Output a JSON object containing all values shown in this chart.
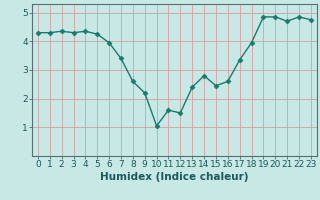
{
  "x": [
    0,
    1,
    2,
    3,
    4,
    5,
    6,
    7,
    8,
    9,
    10,
    11,
    12,
    13,
    14,
    15,
    16,
    17,
    18,
    19,
    20,
    21,
    22,
    23
  ],
  "y": [
    4.3,
    4.3,
    4.35,
    4.3,
    4.35,
    4.25,
    3.95,
    3.4,
    2.6,
    2.2,
    1.05,
    1.6,
    1.5,
    2.4,
    2.8,
    2.45,
    2.6,
    3.35,
    3.95,
    4.85,
    4.85,
    4.7,
    4.85,
    4.75
  ],
  "line_color": "#1a7a6e",
  "marker": "D",
  "marker_size": 2.5,
  "bg_color": "#c8e8e5",
  "grid_color": "#d4a0a0",
  "xlabel": "Humidex (Indice chaleur)",
  "xlim": [
    -0.5,
    23.5
  ],
  "ylim": [
    0,
    5.3
  ],
  "yticks": [
    1,
    2,
    3,
    4,
    5
  ],
  "xticks": [
    0,
    1,
    2,
    3,
    4,
    5,
    6,
    7,
    8,
    9,
    10,
    11,
    12,
    13,
    14,
    15,
    16,
    17,
    18,
    19,
    20,
    21,
    22,
    23
  ],
  "tick_fontsize": 6.5,
  "xlabel_fontsize": 7.5,
  "line_width": 1.0,
  "spine_color": "#557070",
  "tick_color": "#557070",
  "text_color": "#1a5a5a"
}
